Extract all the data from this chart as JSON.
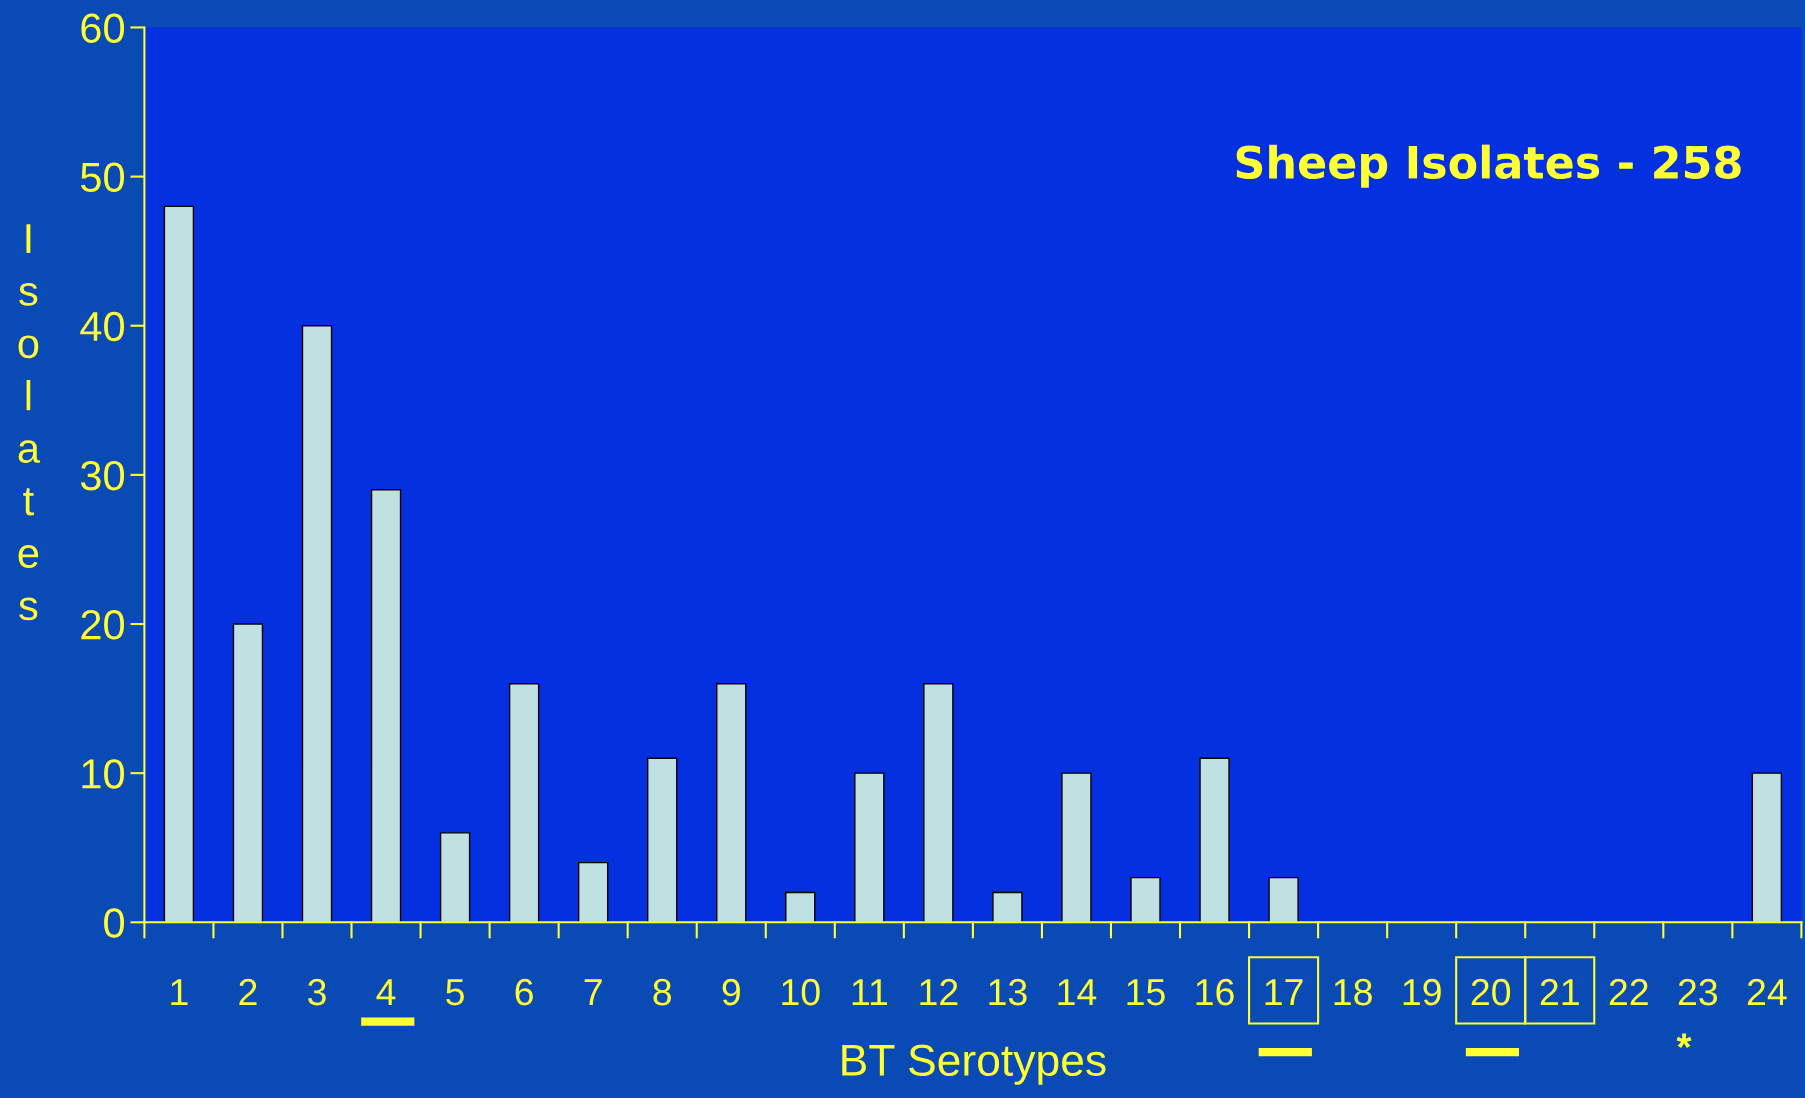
{
  "chart_data": {
    "type": "bar",
    "xlabel": "BT Serotypes",
    "ylabel": "Isolates",
    "categories": [
      "1",
      "2",
      "3",
      "4",
      "5",
      "6",
      "7",
      "8",
      "9",
      "10",
      "11",
      "12",
      "13",
      "14",
      "15",
      "16",
      "17",
      "18",
      "19",
      "20",
      "21",
      "22",
      "23",
      "24"
    ],
    "values": [
      48,
      20,
      40,
      29,
      6,
      16,
      4,
      11,
      16,
      2,
      10,
      16,
      2,
      10,
      3,
      11,
      3,
      0,
      0,
      0,
      0,
      0,
      0,
      10
    ],
    "color": "#bfe1e1",
    "ylim": [
      0,
      60
    ],
    "yticks": [
      0,
      10,
      20,
      30,
      40,
      50,
      60
    ],
    "grid": false,
    "legend": false,
    "annotations": [
      "Sheep Isolates - 258",
      "*"
    ]
  }
}
